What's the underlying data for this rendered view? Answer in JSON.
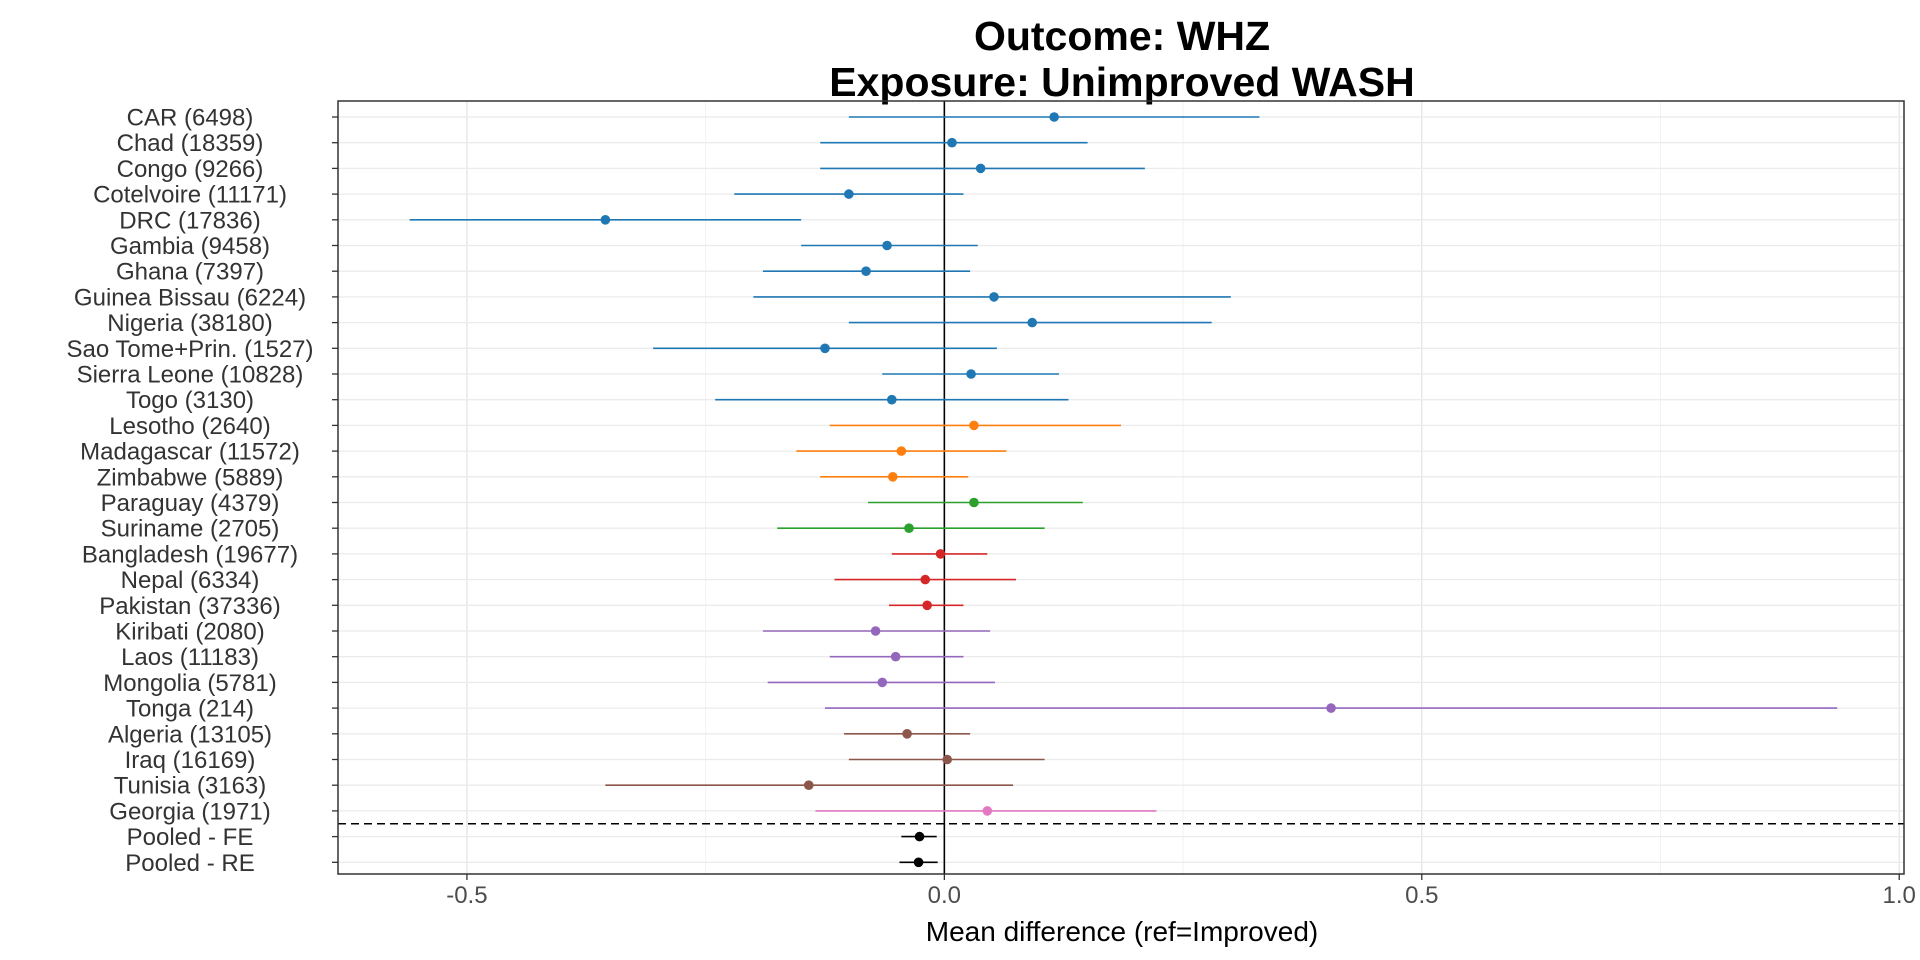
{
  "chart_data": {
    "type": "forest",
    "title_line1": "Outcome: WHZ",
    "title_line2": "Exposure: Unimproved WASH",
    "xlabel": "Mean difference (ref=Improved)",
    "ylabel": "",
    "xlim": [
      -0.635,
      1.005
    ],
    "x_ticks": [
      -0.5,
      0.0,
      0.5,
      1.0
    ],
    "x_tick_labels": [
      "-0.5",
      "0.0",
      "0.5",
      "1.0"
    ],
    "reference_line": 0,
    "grid": true,
    "legend": "none",
    "rows": [
      {
        "label": "CAR (6498)",
        "estimate": 0.115,
        "ci_low": -0.1,
        "ci_high": 0.33,
        "region": "africa-central-west"
      },
      {
        "label": "Chad (18359)",
        "estimate": 0.008,
        "ci_low": -0.13,
        "ci_high": 0.15,
        "region": "africa-central-west"
      },
      {
        "label": "Congo (9266)",
        "estimate": 0.038,
        "ci_low": -0.13,
        "ci_high": 0.21,
        "region": "africa-central-west"
      },
      {
        "label": "Cotelvoire (11171)",
        "estimate": -0.1,
        "ci_low": -0.22,
        "ci_high": 0.02,
        "region": "africa-central-west"
      },
      {
        "label": "DRC (17836)",
        "estimate": -0.355,
        "ci_low": -0.56,
        "ci_high": -0.15,
        "region": "africa-central-west"
      },
      {
        "label": "Gambia (9458)",
        "estimate": -0.06,
        "ci_low": -0.15,
        "ci_high": 0.035,
        "region": "africa-central-west"
      },
      {
        "label": "Ghana (7397)",
        "estimate": -0.082,
        "ci_low": -0.19,
        "ci_high": 0.027,
        "region": "africa-central-west"
      },
      {
        "label": "Guinea Bissau (6224)",
        "estimate": 0.052,
        "ci_low": -0.2,
        "ci_high": 0.3,
        "region": "africa-central-west"
      },
      {
        "label": "Nigeria (38180)",
        "estimate": 0.092,
        "ci_low": -0.1,
        "ci_high": 0.28,
        "region": "africa-central-west"
      },
      {
        "label": "Sao Tome+Prin. (1527)",
        "estimate": -0.125,
        "ci_low": -0.305,
        "ci_high": 0.055,
        "region": "africa-central-west"
      },
      {
        "label": "Sierra Leone (10828)",
        "estimate": 0.028,
        "ci_low": -0.065,
        "ci_high": 0.12,
        "region": "africa-central-west"
      },
      {
        "label": "Togo (3130)",
        "estimate": -0.055,
        "ci_low": -0.24,
        "ci_high": 0.13,
        "region": "africa-central-west"
      },
      {
        "label": "Lesotho (2640)",
        "estimate": 0.031,
        "ci_low": -0.12,
        "ci_high": 0.185,
        "region": "africa-southern-east"
      },
      {
        "label": "Madagascar (11572)",
        "estimate": -0.045,
        "ci_low": -0.155,
        "ci_high": 0.065,
        "region": "africa-southern-east"
      },
      {
        "label": "Zimbabwe (5889)",
        "estimate": -0.054,
        "ci_low": -0.13,
        "ci_high": 0.025,
        "region": "africa-southern-east"
      },
      {
        "label": "Paraguay (4379)",
        "estimate": 0.031,
        "ci_low": -0.08,
        "ci_high": 0.145,
        "region": "latin-america"
      },
      {
        "label": "Suriname (2705)",
        "estimate": -0.037,
        "ci_low": -0.175,
        "ci_high": 0.105,
        "region": "latin-america"
      },
      {
        "label": "Bangladesh (19677)",
        "estimate": -0.004,
        "ci_low": -0.055,
        "ci_high": 0.045,
        "region": "south-asia"
      },
      {
        "label": "Nepal (6334)",
        "estimate": -0.02,
        "ci_low": -0.115,
        "ci_high": 0.075,
        "region": "south-asia"
      },
      {
        "label": "Pakistan (37336)",
        "estimate": -0.018,
        "ci_low": -0.058,
        "ci_high": 0.02,
        "region": "south-asia"
      },
      {
        "label": "Kiribati (2080)",
        "estimate": -0.072,
        "ci_low": -0.19,
        "ci_high": 0.048,
        "region": "east-asia-pacific"
      },
      {
        "label": "Laos (11183)",
        "estimate": -0.051,
        "ci_low": -0.12,
        "ci_high": 0.02,
        "region": "east-asia-pacific"
      },
      {
        "label": "Mongolia (5781)",
        "estimate": -0.065,
        "ci_low": -0.185,
        "ci_high": 0.053,
        "region": "east-asia-pacific"
      },
      {
        "label": "Tonga (214)",
        "estimate": 0.405,
        "ci_low": -0.125,
        "ci_high": 0.935,
        "region": "east-asia-pacific"
      },
      {
        "label": "Algeria (13105)",
        "estimate": -0.039,
        "ci_low": -0.105,
        "ci_high": 0.027,
        "region": "mena"
      },
      {
        "label": "Iraq (16169)",
        "estimate": 0.003,
        "ci_low": -0.1,
        "ci_high": 0.105,
        "region": "mena"
      },
      {
        "label": "Tunisia (3163)",
        "estimate": -0.142,
        "ci_low": -0.355,
        "ci_high": 0.072,
        "region": "mena"
      },
      {
        "label": "Georgia (1971)",
        "estimate": 0.045,
        "ci_low": -0.135,
        "ci_high": 0.222,
        "region": "europe-central-asia"
      },
      {
        "label": "Pooled - FE",
        "estimate": -0.026,
        "ci_low": -0.045,
        "ci_high": -0.008,
        "region": "pooled"
      },
      {
        "label": "Pooled - RE",
        "estimate": -0.027,
        "ci_low": -0.047,
        "ci_high": -0.007,
        "region": "pooled"
      }
    ],
    "region_colors": {
      "africa-central-west": "#1f77b4",
      "africa-southern-east": "#ff7f0e",
      "latin-america": "#2ca02c",
      "south-asia": "#d62728",
      "east-asia-pacific": "#9467bd",
      "mena": "#8c564b",
      "europe-central-asia": "#e377c2",
      "pooled": "#000000"
    }
  }
}
